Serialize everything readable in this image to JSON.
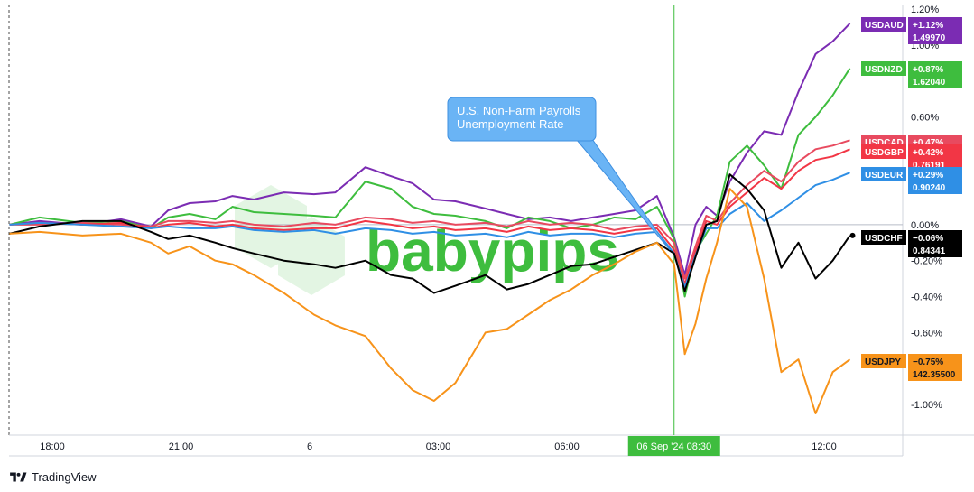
{
  "chart_data": {
    "type": "line",
    "watermark": "babypips",
    "x_ticks": [
      {
        "label": "18:00",
        "t": 0
      },
      {
        "label": "21:00",
        "t": 3
      },
      {
        "label": "6",
        "t": 6
      },
      {
        "label": "03:00",
        "t": 9
      },
      {
        "label": "06:00",
        "t": 12
      },
      {
        "label": "12:00",
        "t": 18
      }
    ],
    "cursor": {
      "label": "06 Sep '24   08:30",
      "t": 14.5
    },
    "y_ticks": [
      "1.20%",
      "1.00%",
      "0.60%",
      "0.00%",
      "-0.20%",
      "-0.40%",
      "-0.60%",
      "-1.00%"
    ],
    "y_tick_values": [
      1.2,
      1.0,
      0.6,
      0.0,
      -0.2,
      -0.4,
      -0.6,
      -1.0
    ],
    "ylim": [
      -1.2,
      1.2
    ],
    "xlim": [
      -1.0,
      19.7
    ],
    "annotation": {
      "lines": [
        "U.S. Non-Farm Payrolls",
        "Unemployment Rate"
      ],
      "points_to_t": 14.4
    },
    "series": [
      {
        "name": "USDAUD",
        "color": "#7b2cb3",
        "change": "+1.12%",
        "price": "1.49970",
        "points": [
          [
            -1.0,
            0.0
          ],
          [
            -0.3,
            0.02
          ],
          [
            0.7,
            0.0
          ],
          [
            1.6,
            0.03
          ],
          [
            2.3,
            -0.01
          ],
          [
            2.7,
            0.08
          ],
          [
            3.2,
            0.12
          ],
          [
            3.8,
            0.13
          ],
          [
            4.2,
            0.16
          ],
          [
            4.7,
            0.14
          ],
          [
            5.4,
            0.18
          ],
          [
            6.1,
            0.17
          ],
          [
            6.6,
            0.18
          ],
          [
            7.3,
            0.32
          ],
          [
            7.9,
            0.27
          ],
          [
            8.4,
            0.23
          ],
          [
            8.9,
            0.14
          ],
          [
            9.4,
            0.13
          ],
          [
            10.1,
            0.09
          ],
          [
            10.6,
            0.06
          ],
          [
            11.1,
            0.03
          ],
          [
            11.6,
            0.04
          ],
          [
            12.1,
            0.02
          ],
          [
            12.6,
            0.04
          ],
          [
            13.1,
            0.06
          ],
          [
            13.6,
            0.08
          ],
          [
            14.1,
            0.16
          ],
          [
            14.5,
            -0.07
          ],
          [
            14.75,
            -0.28
          ],
          [
            15.0,
            0.0
          ],
          [
            15.25,
            0.1
          ],
          [
            15.5,
            0.05
          ],
          [
            15.8,
            0.24
          ],
          [
            16.2,
            0.4
          ],
          [
            16.6,
            0.52
          ],
          [
            17.0,
            0.5
          ],
          [
            17.4,
            0.74
          ],
          [
            17.8,
            0.95
          ],
          [
            18.2,
            1.02
          ],
          [
            18.6,
            1.12
          ]
        ]
      },
      {
        "name": "USDNZD",
        "color": "#3ebd3e",
        "change": "+0.87%",
        "price": "1.62040",
        "points": [
          [
            -1.0,
            0.0
          ],
          [
            -0.3,
            0.04
          ],
          [
            0.7,
            0.01
          ],
          [
            1.6,
            0.02
          ],
          [
            2.3,
            -0.02
          ],
          [
            2.7,
            0.04
          ],
          [
            3.2,
            0.06
          ],
          [
            3.8,
            0.03
          ],
          [
            4.2,
            0.1
          ],
          [
            4.7,
            0.07
          ],
          [
            5.4,
            0.06
          ],
          [
            6.1,
            0.05
          ],
          [
            6.6,
            0.04
          ],
          [
            7.3,
            0.24
          ],
          [
            7.9,
            0.2
          ],
          [
            8.4,
            0.1
          ],
          [
            8.9,
            0.06
          ],
          [
            9.4,
            0.05
          ],
          [
            10.1,
            0.02
          ],
          [
            10.6,
            -0.02
          ],
          [
            11.1,
            0.04
          ],
          [
            11.6,
            0.02
          ],
          [
            12.1,
            -0.02
          ],
          [
            12.6,
            0.0
          ],
          [
            13.1,
            0.04
          ],
          [
            13.6,
            0.03
          ],
          [
            14.1,
            0.1
          ],
          [
            14.5,
            -0.08
          ],
          [
            14.75,
            -0.4
          ],
          [
            15.0,
            -0.15
          ],
          [
            15.25,
            -0.05
          ],
          [
            15.5,
            0.05
          ],
          [
            15.8,
            0.35
          ],
          [
            16.2,
            0.44
          ],
          [
            16.6,
            0.33
          ],
          [
            17.0,
            0.2
          ],
          [
            17.4,
            0.5
          ],
          [
            17.8,
            0.6
          ],
          [
            18.2,
            0.72
          ],
          [
            18.6,
            0.87
          ]
        ]
      },
      {
        "name": "USDCAD",
        "color": "#e84a5f",
        "change": "+0.47%",
        "price": "",
        "points": [
          [
            -1.0,
            0.0
          ],
          [
            -0.3,
            0.0
          ],
          [
            0.7,
            0.01
          ],
          [
            1.6,
            0.0
          ],
          [
            2.3,
            -0.01
          ],
          [
            2.7,
            0.02
          ],
          [
            3.2,
            0.02
          ],
          [
            3.8,
            0.01
          ],
          [
            4.2,
            0.02
          ],
          [
            4.7,
            0.0
          ],
          [
            5.4,
            -0.01
          ],
          [
            6.1,
            0.01
          ],
          [
            6.6,
            0.0
          ],
          [
            7.3,
            0.04
          ],
          [
            7.9,
            0.03
          ],
          [
            8.4,
            0.01
          ],
          [
            8.9,
            0.02
          ],
          [
            9.4,
            0.0
          ],
          [
            10.1,
            0.01
          ],
          [
            10.6,
            -0.01
          ],
          [
            11.1,
            0.02
          ],
          [
            11.6,
            0.0
          ],
          [
            12.1,
            0.01
          ],
          [
            12.6,
            0.0
          ],
          [
            13.1,
            -0.03
          ],
          [
            13.6,
            -0.01
          ],
          [
            14.1,
            0.0
          ],
          [
            14.5,
            -0.1
          ],
          [
            14.75,
            -0.3
          ],
          [
            15.0,
            -0.12
          ],
          [
            15.25,
            0.05
          ],
          [
            15.5,
            0.02
          ],
          [
            15.8,
            0.12
          ],
          [
            16.2,
            0.22
          ],
          [
            16.6,
            0.3
          ],
          [
            17.0,
            0.24
          ],
          [
            17.4,
            0.35
          ],
          [
            17.8,
            0.42
          ],
          [
            18.2,
            0.44
          ],
          [
            18.6,
            0.47
          ]
        ]
      },
      {
        "name": "USDGBP",
        "color": "#f23645",
        "change": "+0.42%",
        "price": "0.76191",
        "points": [
          [
            -1.0,
            0.0
          ],
          [
            -0.3,
            0.01
          ],
          [
            0.7,
            0.0
          ],
          [
            1.6,
            0.01
          ],
          [
            2.3,
            -0.02
          ],
          [
            2.7,
            0.0
          ],
          [
            3.2,
            0.01
          ],
          [
            3.8,
            -0.01
          ],
          [
            4.2,
            0.0
          ],
          [
            4.7,
            -0.02
          ],
          [
            5.4,
            -0.03
          ],
          [
            6.1,
            -0.02
          ],
          [
            6.6,
            -0.02
          ],
          [
            7.3,
            0.02
          ],
          [
            7.9,
            0.0
          ],
          [
            8.4,
            -0.02
          ],
          [
            8.9,
            -0.01
          ],
          [
            9.4,
            -0.03
          ],
          [
            10.1,
            -0.02
          ],
          [
            10.6,
            -0.04
          ],
          [
            11.1,
            -0.01
          ],
          [
            11.6,
            -0.03
          ],
          [
            12.1,
            -0.02
          ],
          [
            12.6,
            -0.03
          ],
          [
            13.1,
            -0.05
          ],
          [
            13.6,
            -0.03
          ],
          [
            14.1,
            -0.02
          ],
          [
            14.5,
            -0.14
          ],
          [
            14.75,
            -0.33
          ],
          [
            15.0,
            -0.15
          ],
          [
            15.25,
            0.02
          ],
          [
            15.5,
            0.0
          ],
          [
            15.8,
            0.1
          ],
          [
            16.2,
            0.18
          ],
          [
            16.6,
            0.26
          ],
          [
            17.0,
            0.2
          ],
          [
            17.4,
            0.3
          ],
          [
            17.8,
            0.36
          ],
          [
            18.2,
            0.38
          ],
          [
            18.6,
            0.42
          ]
        ]
      },
      {
        "name": "USDEUR",
        "color": "#2f8fe5",
        "change": "+0.29%",
        "price": "0.90240",
        "points": [
          [
            -1.0,
            0.0
          ],
          [
            -0.3,
            0.01
          ],
          [
            0.7,
            0.0
          ],
          [
            1.6,
            -0.01
          ],
          [
            2.3,
            -0.02
          ],
          [
            2.7,
            -0.01
          ],
          [
            3.2,
            -0.02
          ],
          [
            3.8,
            -0.02
          ],
          [
            4.2,
            -0.01
          ],
          [
            4.7,
            -0.03
          ],
          [
            5.4,
            -0.04
          ],
          [
            6.1,
            -0.03
          ],
          [
            6.6,
            -0.05
          ],
          [
            7.3,
            -0.02
          ],
          [
            7.9,
            -0.03
          ],
          [
            8.4,
            -0.05
          ],
          [
            8.9,
            -0.04
          ],
          [
            9.4,
            -0.06
          ],
          [
            10.1,
            -0.05
          ],
          [
            10.6,
            -0.07
          ],
          [
            11.1,
            -0.04
          ],
          [
            11.6,
            -0.06
          ],
          [
            12.1,
            -0.05
          ],
          [
            12.6,
            -0.05
          ],
          [
            13.1,
            -0.07
          ],
          [
            13.6,
            -0.05
          ],
          [
            14.1,
            -0.04
          ],
          [
            14.5,
            -0.16
          ],
          [
            14.75,
            -0.35
          ],
          [
            15.0,
            -0.17
          ],
          [
            15.25,
            -0.02
          ],
          [
            15.5,
            -0.02
          ],
          [
            15.8,
            0.06
          ],
          [
            16.2,
            0.12
          ],
          [
            16.6,
            0.02
          ],
          [
            17.0,
            0.08
          ],
          [
            17.4,
            0.15
          ],
          [
            17.8,
            0.22
          ],
          [
            18.2,
            0.25
          ],
          [
            18.6,
            0.29
          ]
        ]
      },
      {
        "name": "USDCHF",
        "color": "#000000",
        "change": "−0.06%",
        "price": "0.84341",
        "points": [
          [
            -1.0,
            -0.05
          ],
          [
            -0.3,
            -0.01
          ],
          [
            0.7,
            0.02
          ],
          [
            1.6,
            0.02
          ],
          [
            2.3,
            -0.04
          ],
          [
            2.7,
            -0.08
          ],
          [
            3.2,
            -0.06
          ],
          [
            3.8,
            -0.1
          ],
          [
            4.2,
            -0.13
          ],
          [
            4.7,
            -0.16
          ],
          [
            5.4,
            -0.2
          ],
          [
            6.1,
            -0.22
          ],
          [
            6.6,
            -0.24
          ],
          [
            7.3,
            -0.2
          ],
          [
            7.9,
            -0.28
          ],
          [
            8.4,
            -0.3
          ],
          [
            8.9,
            -0.38
          ],
          [
            9.4,
            -0.34
          ],
          [
            10.1,
            -0.28
          ],
          [
            10.6,
            -0.36
          ],
          [
            11.1,
            -0.33
          ],
          [
            11.6,
            -0.28
          ],
          [
            12.1,
            -0.23
          ],
          [
            12.6,
            -0.22
          ],
          [
            13.1,
            -0.18
          ],
          [
            13.6,
            -0.14
          ],
          [
            14.1,
            -0.1
          ],
          [
            14.5,
            -0.16
          ],
          [
            14.75,
            -0.37
          ],
          [
            15.0,
            -0.18
          ],
          [
            15.25,
            0.0
          ],
          [
            15.5,
            0.02
          ],
          [
            15.8,
            0.28
          ],
          [
            16.2,
            0.2
          ],
          [
            16.6,
            0.08
          ],
          [
            17.0,
            -0.24
          ],
          [
            17.4,
            -0.1
          ],
          [
            17.8,
            -0.3
          ],
          [
            18.2,
            -0.2
          ],
          [
            18.6,
            -0.06
          ]
        ]
      },
      {
        "name": "USDJPY",
        "color": "#f7931a",
        "change": "−0.75%",
        "price": "142.35500",
        "points": [
          [
            -1.0,
            -0.05
          ],
          [
            -0.3,
            -0.04
          ],
          [
            0.7,
            -0.06
          ],
          [
            1.6,
            -0.05
          ],
          [
            2.3,
            -0.1
          ],
          [
            2.7,
            -0.16
          ],
          [
            3.2,
            -0.12
          ],
          [
            3.8,
            -0.2
          ],
          [
            4.2,
            -0.22
          ],
          [
            4.7,
            -0.28
          ],
          [
            5.4,
            -0.38
          ],
          [
            6.1,
            -0.5
          ],
          [
            6.6,
            -0.56
          ],
          [
            7.3,
            -0.62
          ],
          [
            7.9,
            -0.8
          ],
          [
            8.4,
            -0.92
          ],
          [
            8.9,
            -0.98
          ],
          [
            9.4,
            -0.88
          ],
          [
            10.1,
            -0.6
          ],
          [
            10.6,
            -0.58
          ],
          [
            11.1,
            -0.5
          ],
          [
            11.6,
            -0.42
          ],
          [
            12.1,
            -0.36
          ],
          [
            12.6,
            -0.28
          ],
          [
            13.1,
            -0.22
          ],
          [
            13.6,
            -0.15
          ],
          [
            14.1,
            -0.1
          ],
          [
            14.5,
            -0.22
          ],
          [
            14.75,
            -0.72
          ],
          [
            15.0,
            -0.55
          ],
          [
            15.25,
            -0.3
          ],
          [
            15.5,
            -0.1
          ],
          [
            15.8,
            0.2
          ],
          [
            16.2,
            0.1
          ],
          [
            16.6,
            -0.3
          ],
          [
            17.0,
            -0.82
          ],
          [
            17.4,
            -0.75
          ],
          [
            17.8,
            -1.05
          ],
          [
            18.2,
            -0.82
          ],
          [
            18.6,
            -0.75
          ]
        ]
      }
    ]
  },
  "footer": {
    "brand": "TradingView"
  }
}
